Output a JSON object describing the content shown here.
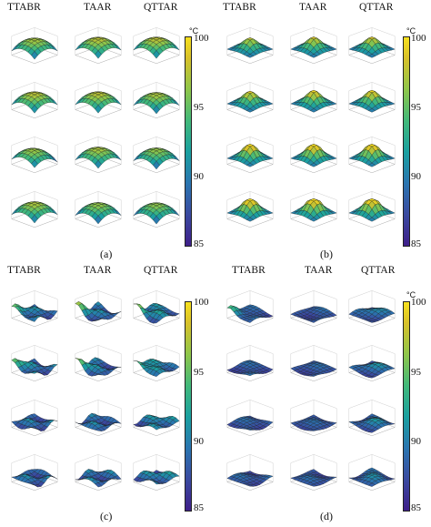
{
  "columns": [
    "TTABR",
    "TAAR",
    "QTTAR"
  ],
  "panels": [
    {
      "id": "a",
      "label": "(a)"
    },
    {
      "id": "b",
      "label": "(b)"
    },
    {
      "id": "c",
      "label": "(c)"
    },
    {
      "id": "d",
      "label": "(d)"
    }
  ],
  "colorbar": {
    "unit": "°C",
    "ticks": [
      "100",
      "95",
      "90",
      "85"
    ],
    "min": 85,
    "max": 100
  },
  "colors": {
    "low": "#3e1f8a",
    "mid": "#1aa0a0",
    "high": "#f7e01e",
    "edge": "#222222"
  },
  "chart_data": {
    "type": "surface-grid",
    "panels": [
      {
        "id": "a",
        "rows": 4,
        "columns": [
          "TTABR",
          "TAAR",
          "QTTAR"
        ],
        "pattern": "broad dome, mostly 90-98 °C"
      },
      {
        "id": "b",
        "rows": 4,
        "columns": [
          "TTABR",
          "TAAR",
          "QTTAR"
        ],
        "pattern": "central peak, 88-100 °C"
      },
      {
        "id": "c",
        "rows": 4,
        "columns": [
          "TTABR",
          "TAAR",
          "QTTAR"
        ],
        "pattern": "wavy, mostly 85-92 °C"
      },
      {
        "id": "d",
        "rows": 4,
        "columns": [
          "TTABR",
          "TAAR",
          "QTTAR"
        ],
        "pattern": "low flat, mostly 85-90 °C"
      }
    ],
    "colorbar_range": [
      85,
      100
    ]
  }
}
